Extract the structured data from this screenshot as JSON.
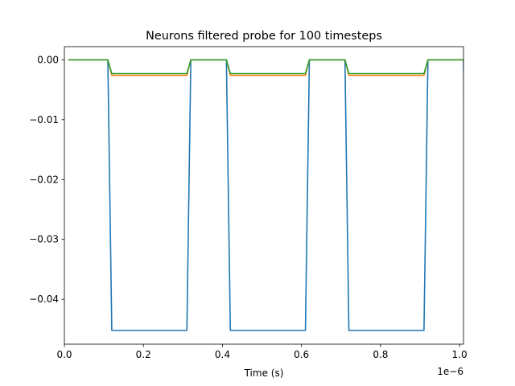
{
  "chart_data": {
    "type": "line",
    "title": "Neurons filtered probe for 100 timesteps",
    "xlabel": "Time (s)",
    "ylabel": "",
    "x_offset_label": "1e−6",
    "xlim": [
      0.0,
      1.01
    ],
    "ylim": [
      -0.0475,
      0.0022
    ],
    "x_ticks": [
      0.0,
      0.2,
      0.4,
      0.6,
      0.8,
      1.0
    ],
    "x_tick_labels": [
      "0.0",
      "0.2",
      "0.4",
      "0.6",
      "0.8",
      "1.0"
    ],
    "y_ticks": [
      0.0,
      -0.01,
      -0.02,
      -0.03,
      -0.04
    ],
    "y_tick_labels": [
      "0.00",
      "−0.01",
      "−0.02",
      "−0.03",
      "−0.04"
    ],
    "grid": false,
    "legend": "none",
    "series": [
      {
        "color": "#1f77b4",
        "x": [
          0.01,
          0.11,
          0.12,
          0.31,
          0.32,
          0.41,
          0.42,
          0.61,
          0.62,
          0.71,
          0.72,
          0.91,
          0.92,
          1.01,
          1.02
        ],
        "y": [
          0.0,
          0.0,
          -0.0452,
          -0.0452,
          0.0,
          0.0,
          -0.0452,
          -0.0452,
          0.0,
          0.0,
          -0.0452,
          -0.0452,
          0.0,
          0.0,
          -0.0452
        ]
      },
      {
        "color": "#ff7f0e",
        "x": [
          0.01,
          0.11,
          0.12,
          0.31,
          0.32,
          0.41,
          0.42,
          0.61,
          0.62,
          0.71,
          0.72,
          0.91,
          0.92,
          1.01,
          1.02
        ],
        "y": [
          0.0,
          0.0,
          -0.0026,
          -0.0026,
          0.0,
          0.0,
          -0.0026,
          -0.0026,
          0.0,
          0.0,
          -0.0026,
          -0.0026,
          0.0,
          0.0,
          -0.0026
        ]
      },
      {
        "color": "#2ca02c",
        "x": [
          0.01,
          0.11,
          0.12,
          0.31,
          0.32,
          0.41,
          0.42,
          0.61,
          0.62,
          0.71,
          0.72,
          0.91,
          0.92,
          1.01,
          1.02
        ],
        "y": [
          0.0,
          0.0,
          -0.0023,
          -0.0023,
          0.0,
          0.0,
          -0.0023,
          -0.0023,
          0.0,
          0.0,
          -0.0023,
          -0.0023,
          0.0,
          0.0,
          -0.0023
        ]
      }
    ]
  }
}
